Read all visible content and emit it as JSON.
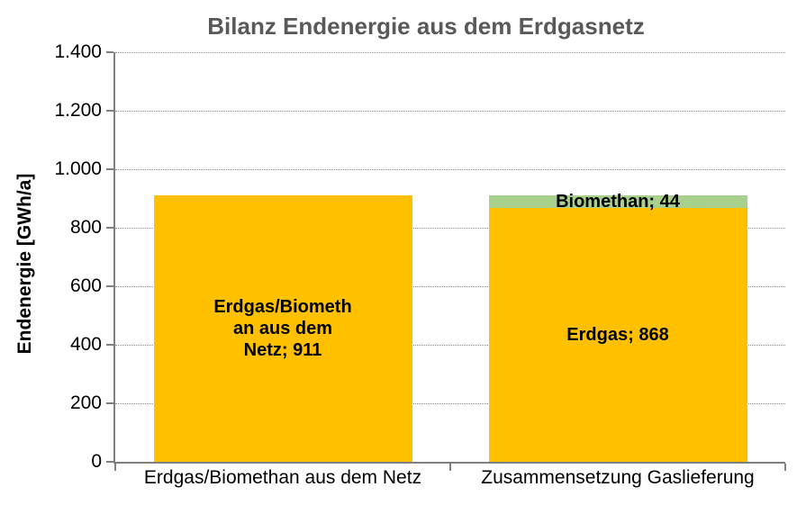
{
  "chart_data": {
    "type": "bar",
    "stacked": true,
    "title": "Bilanz Endenergie aus dem Erdgasnetz",
    "xlabel": "",
    "ylabel": "Endenergie [GWh/a]",
    "ylim": [
      0,
      1400
    ],
    "ytick_values": [
      0,
      200,
      400,
      600,
      800,
      1000,
      1200,
      1400
    ],
    "ytick_labels": [
      "0",
      "200",
      "400",
      "600",
      "800",
      "1.000",
      "1.200",
      "1.400"
    ],
    "grid": true,
    "legend_position": "none",
    "categories": [
      "Erdgas/Biomethan aus dem Netz",
      "Zusammensetzung Gaslieferung"
    ],
    "bars": [
      {
        "category": "Erdgas/Biomethan aus dem Netz",
        "segments": [
          {
            "name": "Erdgas/Biomethan aus dem Netz",
            "value": 911,
            "color": "#FFC000",
            "label": "Erdgas/Biomethan aus dem Netz; 911",
            "label_lines": [
              "Erdgas/Biometh",
              "an aus dem",
              "Netz; 911"
            ]
          }
        ]
      },
      {
        "category": "Zusammensetzung Gaslieferung",
        "segments": [
          {
            "name": "Erdgas",
            "value": 868,
            "color": "#FFC000",
            "label": "Erdgas; 868",
            "label_lines": [
              "Erdgas; 868"
            ]
          },
          {
            "name": "Biomethan",
            "value": 44,
            "color": "#A9D18E",
            "label": "Biomethan; 44",
            "label_lines": [
              "Biomethan; 44"
            ]
          }
        ]
      }
    ],
    "colors": {
      "bar_yellow": "#FFC000",
      "bar_green": "#A9D18E",
      "axis": "#808080",
      "gridline": "#8C8C8C",
      "title_text": "#595959",
      "label_text": "#000000"
    }
  }
}
